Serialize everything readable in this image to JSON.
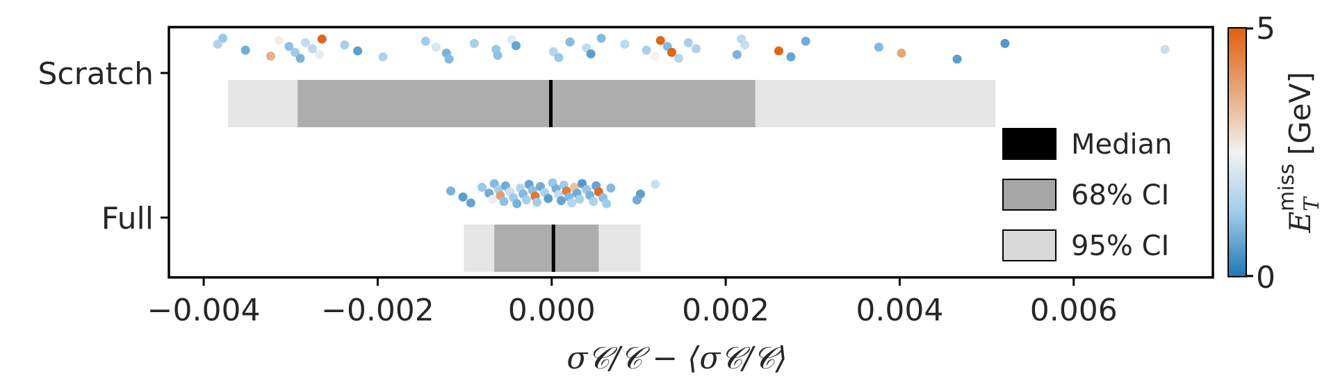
{
  "chart_data": {
    "type": "scatter",
    "title": "",
    "xlabel": "σ𝒞/𝒞 − ⟨σ𝒞/𝒞⟩",
    "ylabel": "",
    "categories": [
      "Scratch",
      "Full"
    ],
    "xlim": [
      -0.0044,
      0.0076
    ],
    "xticks": [
      -0.004,
      -0.002,
      0.0,
      0.002,
      0.004,
      0.006
    ],
    "xtick_labels": [
      "−0.004",
      "−0.002",
      "0.000",
      "0.002",
      "0.004",
      "0.006"
    ],
    "grid": false,
    "legend": {
      "position": "right",
      "entries": [
        {
          "label": "Median",
          "color": "#000000"
        },
        {
          "label": "68% CI",
          "color": "#a6a6a6"
        },
        {
          "label": "95% CI",
          "color": "#d9d9d9"
        }
      ]
    },
    "colorbar": {
      "label_main": "E",
      "label_sub": "T",
      "label_sup": "miss",
      "label_unit": "[GeV]",
      "min": 0,
      "max": 5,
      "min_label": "0",
      "max_label": "5",
      "colors": [
        "#1f77b4",
        "#9ecae9",
        "#f2f2f2",
        "#e6a77a",
        "#e06010"
      ]
    },
    "intervals": [
      {
        "category": "Scratch",
        "median": -1e-05,
        "ci68": [
          -0.00292,
          0.00234
        ],
        "ci95": [
          -0.00372,
          0.0051
        ]
      },
      {
        "category": "Full",
        "median": 2e-05,
        "ci68": [
          -0.00066,
          0.00054
        ],
        "ci95": [
          -0.00101,
          0.00102
        ]
      }
    ],
    "series": [
      {
        "category": "Scratch",
        "points": [
          {
            "x": -0.00378,
            "met": 1.2
          },
          {
            "x": -0.00384,
            "met": 1.5
          },
          {
            "x": -0.00352,
            "met": 0.8
          },
          {
            "x": -0.00323,
            "met": 3.6
          },
          {
            "x": -0.00313,
            "met": 2.6
          },
          {
            "x": -0.00302,
            "met": 1.1
          },
          {
            "x": -0.00295,
            "met": 1.3
          },
          {
            "x": -0.00289,
            "met": 0.9
          },
          {
            "x": -0.00283,
            "met": 1.8
          },
          {
            "x": -0.00275,
            "met": 1.7
          },
          {
            "x": -0.00267,
            "met": 2.3
          },
          {
            "x": -0.00264,
            "met": 4.9
          },
          {
            "x": -0.00238,
            "met": 1.4
          },
          {
            "x": -0.00223,
            "met": 0.6
          },
          {
            "x": -0.00194,
            "met": 1.5
          },
          {
            "x": -0.00145,
            "met": 1.3
          },
          {
            "x": -0.00133,
            "met": 2.1
          },
          {
            "x": -0.00121,
            "met": 0.9
          },
          {
            "x": -0.00118,
            "met": 1.0
          },
          {
            "x": -0.00089,
            "met": 1.4
          },
          {
            "x": -0.00064,
            "met": 1.2
          },
          {
            "x": -0.00062,
            "met": 1.1
          },
          {
            "x": -0.00046,
            "met": 2.2
          },
          {
            "x": -0.00041,
            "met": 0.7
          },
          {
            "x": 2e-05,
            "met": 1.6
          },
          {
            "x": 8e-05,
            "met": 1.2
          },
          {
            "x": 0.00021,
            "met": 1.0
          },
          {
            "x": 0.0004,
            "met": 1.8
          },
          {
            "x": 0.00045,
            "met": 0.6
          },
          {
            "x": 0.00057,
            "met": 1.0
          },
          {
            "x": 0.00084,
            "met": 1.7
          },
          {
            "x": 0.00109,
            "met": 1.4
          },
          {
            "x": 0.00119,
            "met": 2.5
          },
          {
            "x": 0.00125,
            "met": 4.9
          },
          {
            "x": 0.00133,
            "met": 1.0
          },
          {
            "x": 0.00138,
            "met": 4.9
          },
          {
            "x": 0.00146,
            "met": 1.6
          },
          {
            "x": 0.00157,
            "met": 1.4
          },
          {
            "x": 0.00166,
            "met": 1.5
          },
          {
            "x": 0.00213,
            "met": 0.9
          },
          {
            "x": 0.00218,
            "met": 1.7
          },
          {
            "x": 0.00222,
            "met": 1.9
          },
          {
            "x": 0.00261,
            "met": 4.9
          },
          {
            "x": 0.00275,
            "met": 0.7
          },
          {
            "x": 0.00292,
            "met": 0.8
          },
          {
            "x": 0.00376,
            "met": 1.0
          },
          {
            "x": 0.00402,
            "met": 3.8
          },
          {
            "x": 0.00466,
            "met": 0.6
          },
          {
            "x": 0.00521,
            "met": 0.5
          },
          {
            "x": 0.00705,
            "met": 1.9
          }
        ]
      },
      {
        "category": "Full",
        "points": [
          {
            "x": -0.00116,
            "met": 0.9
          },
          {
            "x": -0.00102,
            "met": 0.6
          },
          {
            "x": -0.00093,
            "met": 0.7
          },
          {
            "x": -0.0008,
            "met": 1.2
          },
          {
            "x": -0.00072,
            "met": 0.8
          },
          {
            "x": -0.00068,
            "met": 2.4
          },
          {
            "x": -0.00066,
            "met": 1.0
          },
          {
            "x": -0.00061,
            "met": 1.4
          },
          {
            "x": -0.00059,
            "met": 3.9
          },
          {
            "x": -0.00055,
            "met": 1.1
          },
          {
            "x": -0.00053,
            "met": 0.8
          },
          {
            "x": -0.00048,
            "met": 1.9
          },
          {
            "x": -0.00044,
            "met": 1.3
          },
          {
            "x": -0.0004,
            "met": 0.9
          },
          {
            "x": -0.00036,
            "met": 1.6
          },
          {
            "x": -0.00033,
            "met": 1.0
          },
          {
            "x": -0.00029,
            "met": 1.4
          },
          {
            "x": -0.00026,
            "met": 0.7
          },
          {
            "x": -0.00022,
            "met": 1.1
          },
          {
            "x": -0.00019,
            "met": 4.6
          },
          {
            "x": -0.00017,
            "met": 1.3
          },
          {
            "x": -0.00013,
            "met": 0.8
          },
          {
            "x": -8e-05,
            "met": 1.5
          },
          {
            "x": -4e-05,
            "met": 0.6
          },
          {
            "x": 1e-05,
            "met": 1.2
          },
          {
            "x": 5e-05,
            "met": 0.9
          },
          {
            "x": 8e-05,
            "met": 1.8
          },
          {
            "x": 0.00011,
            "met": 0.7
          },
          {
            "x": 0.00014,
            "met": 1.3
          },
          {
            "x": 0.00017,
            "met": 4.5
          },
          {
            "x": 0.0002,
            "met": 1.0
          },
          {
            "x": 0.00023,
            "met": 1.6
          },
          {
            "x": 0.00026,
            "met": 3.3
          },
          {
            "x": 0.00029,
            "met": 0.8
          },
          {
            "x": 0.00032,
            "met": 1.4
          },
          {
            "x": 0.00035,
            "met": 0.5
          },
          {
            "x": 0.0004,
            "met": 1.2
          },
          {
            "x": 0.00044,
            "met": 0.9
          },
          {
            "x": 0.00048,
            "met": 1.5
          },
          {
            "x": 0.00051,
            "met": 0.7
          },
          {
            "x": 0.00054,
            "met": 4.8
          },
          {
            "x": 0.00059,
            "met": 1.1
          },
          {
            "x": 0.00063,
            "met": 1.3
          },
          {
            "x": 0.00068,
            "met": 1.0
          },
          {
            "x": 0.00102,
            "met": 0.6
          },
          {
            "x": 0.00098,
            "met": 0.8
          },
          {
            "x": 0.00119,
            "met": 1.9
          }
        ]
      }
    ]
  }
}
